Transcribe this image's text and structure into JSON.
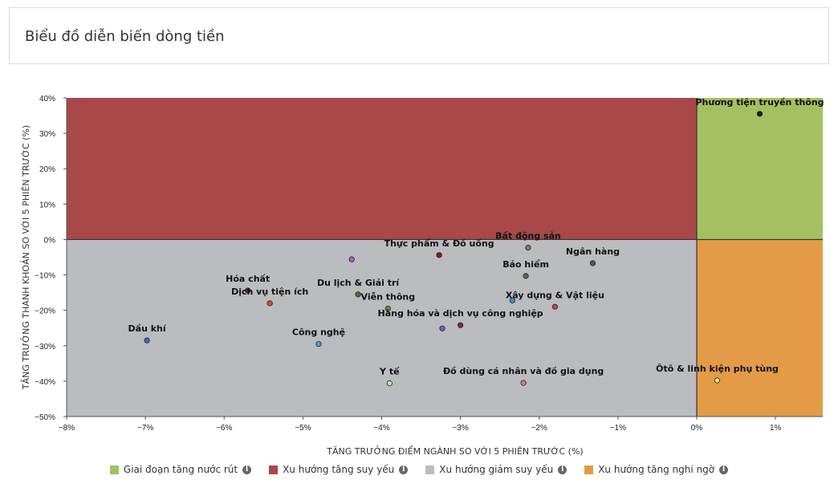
{
  "header": {
    "title": "Biểu đồ diễn biến dòng tiền"
  },
  "chart_data": {
    "type": "scatter",
    "xlabel": "TĂNG TRƯỞNG ĐIỂM NGÀNH SO VỚI 5 PHIÊN TRƯỚC (%)",
    "ylabel": "TĂNG TRƯỞNG THANH KHOẢN SO VỚI 5 PHIÊN TRƯỚC (%)",
    "xlim": [
      -8,
      1.6
    ],
    "ylim": [
      -50,
      40
    ],
    "x_ticks": [
      -8,
      -7,
      -6,
      -5,
      -4,
      -3,
      -2,
      -1,
      0,
      1
    ],
    "y_ticks": [
      40,
      30,
      20,
      10,
      0,
      -10,
      -20,
      -30,
      -40,
      -50
    ],
    "quadrants": [
      {
        "name": "Giai đoạn tăng nước rút",
        "color": "#a4c063",
        "x": [
          0,
          1.6
        ],
        "y": [
          0,
          40
        ]
      },
      {
        "name": "Xu hướng tăng suy yếu",
        "color": "#a84848",
        "x": [
          -8,
          0
        ],
        "y": [
          0,
          40
        ]
      },
      {
        "name": "Xu hướng giảm suy yếu",
        "color": "#bbbcc0",
        "x": [
          -8,
          0
        ],
        "y": [
          -50,
          0
        ]
      },
      {
        "name": "Xu hướng tăng nghi ngờ",
        "color": "#e39b47",
        "x": [
          0,
          1.6
        ],
        "y": [
          -50,
          0
        ]
      }
    ],
    "points": [
      {
        "label": "Phương tiện truyền thông",
        "x": 0.8,
        "y": 35.5,
        "color": "#1a1a1a"
      },
      {
        "label": "Bất động sản",
        "x": -2.14,
        "y": -2.3,
        "color": "#777777"
      },
      {
        "label": "Thực phẩm & Đồ uống",
        "x": -3.27,
        "y": -4.4,
        "color": "#7a1f1f"
      },
      {
        "label": "",
        "x": -4.38,
        "y": -5.6,
        "color": "#a45ed8"
      },
      {
        "label": "Ngân hàng",
        "x": -1.32,
        "y": -6.7,
        "color": "#555555"
      },
      {
        "label": "Bảo hiểm",
        "x": -2.17,
        "y": -10.3,
        "color": "#5a6a3a"
      },
      {
        "label": "Hóa chất",
        "x": -5.7,
        "y": -14.4,
        "color": "#5a3a3a"
      },
      {
        "label": "Dịch vụ tiện ích",
        "x": -5.42,
        "y": -18.0,
        "color": "#d04a35"
      },
      {
        "label": "Du lịch & Giải trí",
        "x": -4.3,
        "y": -15.5,
        "color": "#5a6a2a"
      },
      {
        "label": "Viễn thông",
        "x": -3.92,
        "y": -19.5,
        "color": "#6a8a3a"
      },
      {
        "label": "Xây dựng & Vật liệu",
        "x": -1.8,
        "y": -19.0,
        "color": "#c8405a"
      },
      {
        "label": "",
        "x": -2.34,
        "y": -17.2,
        "color": "#4a8ad0"
      },
      {
        "label": "Hàng hóa và dịch vụ công nghiệp",
        "x": -3.0,
        "y": -24.2,
        "color": "#7a2a4a"
      },
      {
        "label": "",
        "x": -3.23,
        "y": -25.1,
        "color": "#5a6ad8"
      },
      {
        "label": "Dầu khí",
        "x": -6.98,
        "y": -28.5,
        "color": "#3a6ad0"
      },
      {
        "label": "Công nghệ",
        "x": -4.8,
        "y": -29.5,
        "color": "#4aa0e0"
      },
      {
        "label": "Y tế",
        "x": -3.9,
        "y": -40.6,
        "color": "#b8e8a8"
      },
      {
        "label": "Đồ dùng cá nhân và đồ gia dụng",
        "x": -2.2,
        "y": -40.5,
        "color": "#e07a7a"
      },
      {
        "label": "Ôtô & linh kiện phụ tùng",
        "x": 0.26,
        "y": -39.8,
        "color": "#e8e860"
      }
    ]
  },
  "legend": [
    {
      "label": "Giai đoạn tăng nước rút",
      "color": "#a4c063"
    },
    {
      "label": "Xu hướng tăng suy yếu",
      "color": "#a84848"
    },
    {
      "label": "Xu hướng giảm suy yếu",
      "color": "#bbbcc0"
    },
    {
      "label": "Xu hướng tăng nghi ngờ",
      "color": "#e39b47"
    }
  ],
  "icons": {
    "info": "info-icon"
  }
}
